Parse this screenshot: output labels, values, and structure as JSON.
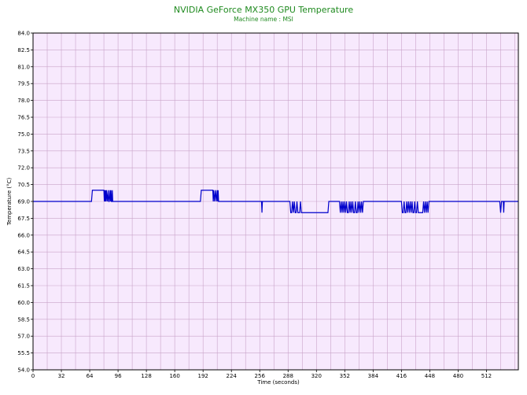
{
  "chart_data": {
    "type": "line",
    "title": "NVIDIA GeForce MX350 GPU Temperature",
    "subtitle": "Machine name : MSI",
    "xlabel": "Time (seconds)",
    "ylabel": "Temperature (°C)",
    "xlim": [
      0,
      548
    ],
    "ylim": [
      54,
      84
    ],
    "x_ticks": [
      0,
      32,
      64,
      96,
      128,
      160,
      192,
      224,
      256,
      288,
      320,
      352,
      384,
      416,
      448,
      480,
      512
    ],
    "y_ticks": [
      54.0,
      55.5,
      57.0,
      58.5,
      60.0,
      61.5,
      63.0,
      64.5,
      66.0,
      67.5,
      69.0,
      70.5,
      72.0,
      73.5,
      75.0,
      76.5,
      78.0,
      79.5,
      81.0,
      82.5,
      84.0
    ],
    "grid": true,
    "series": [
      {
        "color": "#0000cc",
        "points": [
          [
            0,
            69
          ],
          [
            66,
            69
          ],
          [
            67,
            70
          ],
          [
            80,
            70
          ],
          [
            80.5,
            69
          ],
          [
            81,
            70
          ],
          [
            81.5,
            69
          ],
          [
            82,
            70
          ],
          [
            82.5,
            69
          ],
          [
            83,
            70
          ],
          [
            84,
            69
          ],
          [
            85,
            70
          ],
          [
            85.5,
            69
          ],
          [
            86,
            69
          ],
          [
            87,
            70
          ],
          [
            87.5,
            69
          ],
          [
            88,
            70
          ],
          [
            88.5,
            69
          ],
          [
            89,
            69
          ],
          [
            89.5,
            70
          ],
          [
            90,
            69
          ],
          [
            189,
            69
          ],
          [
            190,
            70
          ],
          [
            203,
            70
          ],
          [
            203.5,
            69
          ],
          [
            204,
            70
          ],
          [
            205,
            69
          ],
          [
            206,
            70
          ],
          [
            207,
            69
          ],
          [
            208,
            70
          ],
          [
            208.5,
            69
          ],
          [
            209,
            70
          ],
          [
            209.5,
            69
          ],
          [
            258,
            69
          ],
          [
            258.5,
            68
          ],
          [
            259,
            69
          ],
          [
            290,
            69
          ],
          [
            291,
            68
          ],
          [
            292,
            68
          ],
          [
            293,
            69
          ],
          [
            294,
            68
          ],
          [
            295,
            69
          ],
          [
            296,
            68
          ],
          [
            297,
            68
          ],
          [
            298,
            69
          ],
          [
            299,
            68
          ],
          [
            300,
            68
          ],
          [
            301,
            68
          ],
          [
            302,
            69
          ],
          [
            303,
            68
          ],
          [
            333,
            68
          ],
          [
            334,
            69
          ],
          [
            346,
            69
          ],
          [
            347,
            68
          ],
          [
            348,
            69
          ],
          [
            349,
            68
          ],
          [
            350,
            69
          ],
          [
            351,
            68
          ],
          [
            352,
            69
          ],
          [
            353,
            68
          ],
          [
            354,
            69
          ],
          [
            355,
            68
          ],
          [
            356,
            68
          ],
          [
            357,
            69
          ],
          [
            358,
            68
          ],
          [
            359,
            69
          ],
          [
            360,
            68
          ],
          [
            361,
            69
          ],
          [
            362,
            68
          ],
          [
            363,
            68
          ],
          [
            364,
            69
          ],
          [
            365,
            68
          ],
          [
            366,
            68
          ],
          [
            367,
            69
          ],
          [
            368,
            68
          ],
          [
            369,
            69
          ],
          [
            370,
            68
          ],
          [
            371,
            69
          ],
          [
            372,
            68
          ],
          [
            373,
            69
          ],
          [
            416,
            69
          ],
          [
            417,
            68
          ],
          [
            418,
            68
          ],
          [
            419,
            69
          ],
          [
            420,
            68
          ],
          [
            421,
            68
          ],
          [
            422,
            69
          ],
          [
            423,
            68
          ],
          [
            424,
            69
          ],
          [
            425,
            68
          ],
          [
            426,
            69
          ],
          [
            427,
            68
          ],
          [
            428,
            69
          ],
          [
            429,
            68
          ],
          [
            430,
            68
          ],
          [
            431,
            69
          ],
          [
            432,
            68
          ],
          [
            433,
            68
          ],
          [
            434,
            69
          ],
          [
            435,
            68
          ],
          [
            436,
            68
          ],
          [
            437,
            68
          ],
          [
            438,
            68
          ],
          [
            439,
            68
          ],
          [
            440,
            68
          ],
          [
            441,
            69
          ],
          [
            442,
            68
          ],
          [
            443,
            69
          ],
          [
            444,
            68
          ],
          [
            445,
            69
          ],
          [
            446,
            68
          ],
          [
            447,
            69
          ],
          [
            527,
            69
          ],
          [
            528,
            68
          ],
          [
            529,
            69
          ],
          [
            531,
            69
          ],
          [
            531.5,
            68
          ],
          [
            532,
            69
          ],
          [
            548,
            69
          ]
        ]
      }
    ]
  },
  "colors": {
    "plot_background": "#f7e9fd",
    "grid": "#c9a3c9",
    "frame": "#000000",
    "title": "#1f8a1f",
    "line": "#0000cc"
  }
}
